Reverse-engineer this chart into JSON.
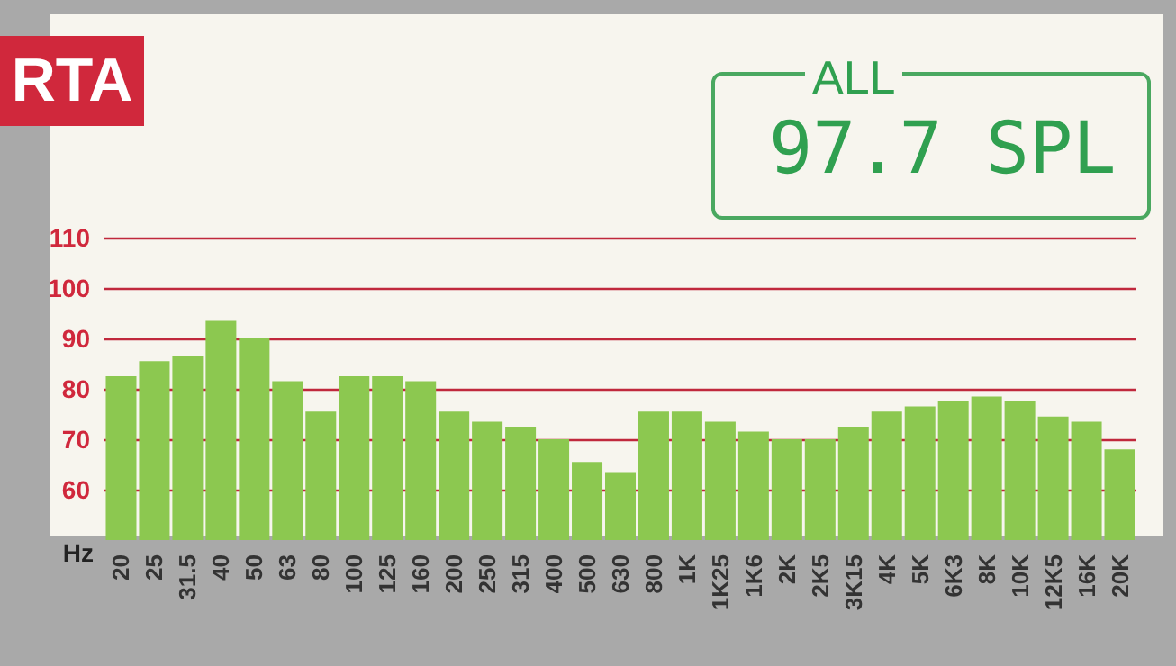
{
  "chart_data": {
    "type": "bar",
    "title": "RTA",
    "xlabel": "Hz",
    "annotations": [
      "ALL",
      "97.7 SPL"
    ],
    "categories": [
      "20",
      "25",
      "31.5",
      "40",
      "50",
      "63",
      "80",
      "100",
      "125",
      "160",
      "200",
      "250",
      "315",
      "400",
      "500",
      "630",
      "800",
      "1K",
      "1K25",
      "1K6",
      "2K",
      "2K5",
      "3K15",
      "4K",
      "5K",
      "6K3",
      "8K",
      "10K",
      "12K5",
      "16K",
      "20K"
    ],
    "values": [
      82.5,
      85.5,
      86.5,
      93.5,
      90,
      81.5,
      75.5,
      82.5,
      82.5,
      81.5,
      75.5,
      73.5,
      72.5,
      70,
      65.5,
      63.5,
      75.5,
      75.5,
      73.5,
      71.5,
      70,
      70,
      72.5,
      75.5,
      76.5,
      77.5,
      78.5,
      77.5,
      74.5,
      73.5,
      68
    ],
    "color": "#8cc850",
    "ylim": [
      50,
      110
    ],
    "yticks": [
      60,
      70,
      80,
      90,
      100,
      110
    ],
    "grid": "y"
  }
}
